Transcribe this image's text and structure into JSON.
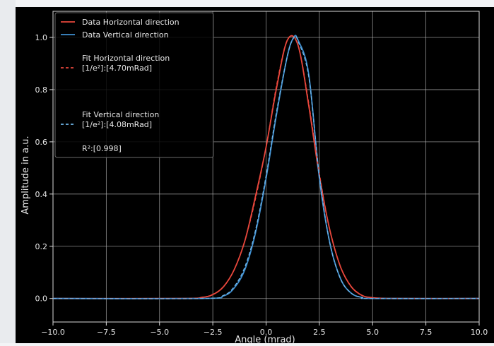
{
  "chart_data": {
    "type": "line",
    "xlabel": "Angle (mrad)",
    "ylabel": "Amplitude in a.u.",
    "xlim": [
      -10,
      10
    ],
    "ylim": [
      -0.09,
      1.1
    ],
    "x_ticks": [
      "−10.0",
      "−7.5",
      "−5.0",
      "−2.5",
      "0.0",
      "2.5",
      "5.0",
      "7.5",
      "10.0"
    ],
    "y_ticks": [
      "0.0",
      "0.2",
      "0.4",
      "0.6",
      "0.8",
      "1.0"
    ],
    "grid": true,
    "legend_position": "top-left",
    "background": "#000000",
    "series": [
      {
        "name": "Data Horizontal direction",
        "color": "#e8473c",
        "style": "solid",
        "x": [
          -10,
          -4,
          -3,
          -2.5,
          -2,
          -1.5,
          -1,
          -0.5,
          0,
          0.5,
          1,
          1.5,
          2,
          2.5,
          3,
          3.5,
          4,
          4.5,
          5,
          6,
          10
        ],
        "y": [
          0,
          0.0,
          0.004,
          0.015,
          0.045,
          0.11,
          0.22,
          0.39,
          0.58,
          0.81,
          0.99,
          0.97,
          0.74,
          0.47,
          0.26,
          0.12,
          0.045,
          0.012,
          0.003,
          0.0,
          0
        ]
      },
      {
        "name": "Data Vertical direction",
        "color": "#3f8fd0",
        "style": "solid",
        "x": [
          -10,
          -3,
          -2,
          -1.5,
          -1,
          -0.5,
          0,
          0.5,
          1,
          1.3,
          1.5,
          2,
          2.5,
          3,
          3.5,
          4,
          4.5,
          5,
          10
        ],
        "y": [
          0,
          0.0,
          0.01,
          0.04,
          0.11,
          0.25,
          0.46,
          0.71,
          0.93,
          1.0,
          0.99,
          0.86,
          0.46,
          0.21,
          0.075,
          0.02,
          0.004,
          0.0,
          0
        ]
      },
      {
        "name": "Fit Horizontal direction",
        "name_line2": "[1/e²]:[4.70mRad]",
        "color": "#e8473c",
        "style": "dashed",
        "x": [
          -10,
          -4,
          -3,
          -2.5,
          -2,
          -1.5,
          -1,
          -0.5,
          0,
          0.5,
          1,
          1.5,
          2,
          2.5,
          3,
          3.5,
          4,
          4.5,
          5,
          6,
          10
        ],
        "y": [
          0,
          0.0,
          0.005,
          0.016,
          0.046,
          0.11,
          0.22,
          0.38,
          0.58,
          0.82,
          0.99,
          0.97,
          0.75,
          0.48,
          0.26,
          0.12,
          0.044,
          0.012,
          0.003,
          0.0,
          0
        ]
      },
      {
        "name": "Fit Vertical direction",
        "name_line2": "[1/e²]:[4.08mRad]",
        "color": "#6fb6ea",
        "style": "dashed",
        "x": [
          -10,
          -3,
          -2,
          -1.5,
          -1,
          -0.5,
          0,
          0.5,
          1,
          1.3,
          1.5,
          2,
          2.5,
          3,
          3.5,
          4,
          4.5,
          5,
          10
        ],
        "y": [
          0,
          0.0,
          0.012,
          0.045,
          0.12,
          0.26,
          0.47,
          0.72,
          0.93,
          1.0,
          0.985,
          0.85,
          0.47,
          0.21,
          0.074,
          0.02,
          0.004,
          0.0,
          0
        ]
      }
    ],
    "legend_extra": "R²:[0.998]"
  }
}
